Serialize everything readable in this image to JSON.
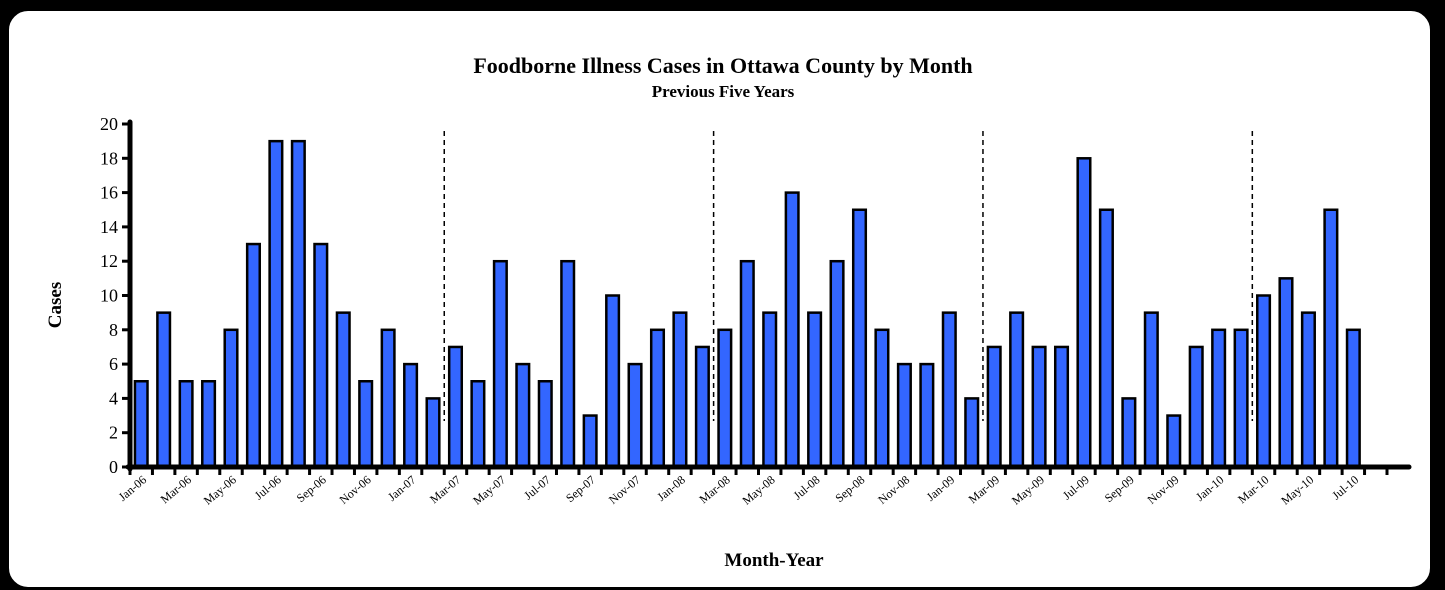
{
  "chart_data": {
    "type": "bar",
    "title": "Foodborne Illness Cases in Ottawa County by Month",
    "subtitle": "Previous Five Years",
    "xlabel": "Month-Year",
    "ylabel": "Cases",
    "ylim": [
      0,
      20
    ],
    "yticks": [
      "0",
      "2",
      "4",
      "6",
      "8",
      "10",
      "12",
      "14",
      "16",
      "18",
      "20"
    ],
    "bar_color": "#3366FF",
    "grid": false,
    "categories": [
      "Jan-06",
      "Feb-06",
      "Mar-06",
      "Apr-06",
      "May-06",
      "Jun-06",
      "Jul-06",
      "Aug-06",
      "Sep-06",
      "Oct-06",
      "Nov-06",
      "Dec-06",
      "Jan-07",
      "Feb-07",
      "Mar-07",
      "Apr-07",
      "May-07",
      "Jun-07",
      "Jul-07",
      "Aug-07",
      "Sep-07",
      "Oct-07",
      "Nov-07",
      "Dec-07",
      "Jan-08",
      "Feb-08",
      "Mar-08",
      "Apr-08",
      "May-08",
      "Jun-08",
      "Jul-08",
      "Aug-08",
      "Sep-08",
      "Oct-08",
      "Nov-08",
      "Dec-08",
      "Jan-09",
      "Feb-09",
      "Mar-09",
      "Apr-09",
      "May-09",
      "Jun-09",
      "Jul-09",
      "Aug-09",
      "Sep-09",
      "Oct-09",
      "Nov-09",
      "Dec-09",
      "Jan-10",
      "Feb-10",
      "Mar-10",
      "Apr-10",
      "May-10",
      "Jun-10",
      "Jul-10",
      "Aug-10"
    ],
    "values": [
      5,
      9,
      5,
      5,
      8,
      13,
      19,
      19,
      13,
      9,
      5,
      8,
      6,
      4,
      7,
      5,
      12,
      6,
      5,
      12,
      3,
      10,
      6,
      8,
      9,
      7,
      8,
      12,
      9,
      16,
      9,
      12,
      15,
      8,
      6,
      6,
      9,
      4,
      7,
      9,
      7,
      7,
      18,
      15,
      4,
      9,
      3,
      7,
      8,
      8,
      10,
      11,
      9,
      15,
      8,
      0
    ],
    "xtick_labels": [
      "Jan-06",
      "Mar-06",
      "May-06",
      "Jul-06",
      "Sep-06",
      "Nov-06",
      "Jan-07",
      "Mar-07",
      "May-07",
      "Jul-07",
      "Sep-07",
      "Nov-07",
      "Jan-08",
      "Mar-08",
      "May-08",
      "Jul-08",
      "Sep-08",
      "Nov-08",
      "Jan-09",
      "Mar-09",
      "May-09",
      "Jul-09",
      "Sep-09",
      "Nov-09",
      "Jan-10",
      "Mar-10",
      "May-10",
      "Jul-10"
    ],
    "year_dividers_after": [
      "Feb-07",
      "Feb-08",
      "Feb-09",
      "Feb-10"
    ]
  }
}
